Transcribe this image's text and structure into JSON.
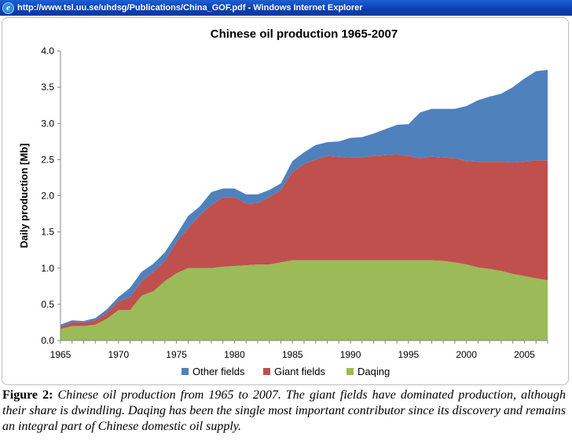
{
  "window": {
    "title": "http://www.tsl.uu.se/uhdsg/Publications/China_GOF.pdf - Windows Internet Explorer",
    "icon": "internet-explorer-icon"
  },
  "figure": {
    "label": "Figure 2:",
    "caption": "Chinese oil production from 1965 to 2007. The giant fields have dominated production, although their share is dwindling. Daqing has been the single most important contributor since its discovery and remains an integral part of Chinese domestic oil supply."
  },
  "chart_data": {
    "type": "area",
    "stacked": true,
    "title": "Chinese oil production 1965-2007",
    "xlabel": "",
    "ylabel": "Daily production [Mb]",
    "x": [
      1965,
      1966,
      1967,
      1968,
      1969,
      1970,
      1971,
      1972,
      1973,
      1974,
      1975,
      1976,
      1977,
      1978,
      1979,
      1980,
      1981,
      1982,
      1983,
      1984,
      1985,
      1986,
      1987,
      1988,
      1989,
      1990,
      1991,
      1992,
      1993,
      1994,
      1995,
      1996,
      1997,
      1998,
      1999,
      2000,
      2001,
      2002,
      2003,
      2004,
      2005,
      2006,
      2007
    ],
    "xlim": [
      1965,
      2007
    ],
    "ylim": [
      0,
      4.0
    ],
    "x_ticks": [
      1965,
      1970,
      1975,
      1980,
      1985,
      1990,
      1995,
      2000,
      2005
    ],
    "y_ticks": [
      "0.0",
      "0.5",
      "1.0",
      "1.5",
      "2.0",
      "2.5",
      "3.0",
      "3.5",
      "4.0"
    ],
    "grid": false,
    "legend_position": "bottom",
    "series": [
      {
        "name": "Daqing",
        "color": "#9bbb59",
        "values": [
          0.16,
          0.2,
          0.2,
          0.22,
          0.3,
          0.42,
          0.42,
          0.62,
          0.68,
          0.82,
          0.93,
          1.0,
          1.0,
          1.0,
          1.02,
          1.03,
          1.04,
          1.05,
          1.05,
          1.08,
          1.11,
          1.11,
          1.11,
          1.11,
          1.11,
          1.11,
          1.11,
          1.11,
          1.11,
          1.11,
          1.11,
          1.11,
          1.11,
          1.1,
          1.08,
          1.05,
          1.01,
          0.99,
          0.96,
          0.92,
          0.89,
          0.86,
          0.83
        ]
      },
      {
        "name": "Giant fields",
        "color": "#c0504d",
        "values": [
          0.03,
          0.05,
          0.05,
          0.06,
          0.08,
          0.12,
          0.18,
          0.2,
          0.27,
          0.28,
          0.43,
          0.55,
          0.73,
          0.87,
          0.96,
          0.95,
          0.85,
          0.85,
          0.93,
          1.0,
          1.22,
          1.33,
          1.39,
          1.44,
          1.43,
          1.42,
          1.42,
          1.44,
          1.45,
          1.46,
          1.44,
          1.41,
          1.43,
          1.43,
          1.44,
          1.43,
          1.46,
          1.48,
          1.51,
          1.54,
          1.58,
          1.63,
          1.66
        ]
      },
      {
        "name": "Other fields",
        "color": "#4f81bd",
        "values": [
          0.03,
          0.03,
          0.02,
          0.03,
          0.05,
          0.06,
          0.13,
          0.13,
          0.11,
          0.12,
          0.1,
          0.17,
          0.12,
          0.18,
          0.12,
          0.12,
          0.13,
          0.12,
          0.1,
          0.09,
          0.15,
          0.16,
          0.2,
          0.19,
          0.21,
          0.27,
          0.28,
          0.31,
          0.36,
          0.41,
          0.44,
          0.63,
          0.66,
          0.67,
          0.68,
          0.76,
          0.85,
          0.9,
          0.94,
          1.04,
          1.15,
          1.23,
          1.25
        ]
      }
    ],
    "legend_order": [
      "Other fields",
      "Giant fields",
      "Daqing"
    ]
  }
}
